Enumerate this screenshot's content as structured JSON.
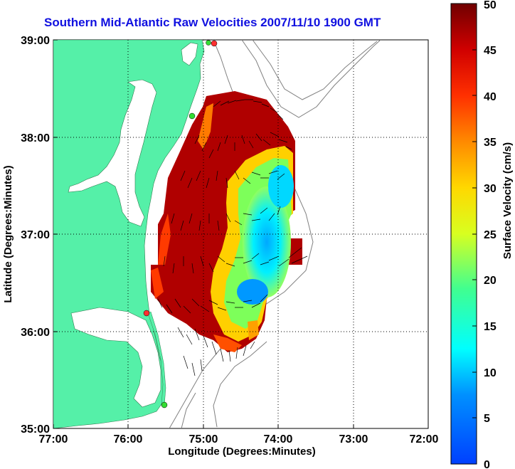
{
  "title": "Southern Mid-Atlantic Raw Velocities 2007/11/10 1900 GMT",
  "map": {
    "x_label": "Longitude (Degrees:Minutes)",
    "y_label": "Latitude (Degrees:Minutes)",
    "x_ticks": [
      "77:00",
      "76:00",
      "75:00",
      "74:00",
      "73:00",
      "72:00"
    ],
    "y_ticks": [
      "39:00",
      "38:00",
      "37:00",
      "36:00",
      "35:00"
    ],
    "grid": "dotted",
    "land_color": "#55f0a8",
    "water_color": "#ffffff",
    "station_marker_colors": [
      "#ff3030",
      "#33dd33"
    ]
  },
  "colorbar": {
    "label": "Surface Velocity (cm/s)",
    "ticks": [
      "50",
      "45",
      "40",
      "35",
      "30",
      "25",
      "20",
      "15",
      "10",
      "5",
      "0"
    ],
    "range": [
      0,
      50
    ],
    "units": "cm/s"
  }
}
